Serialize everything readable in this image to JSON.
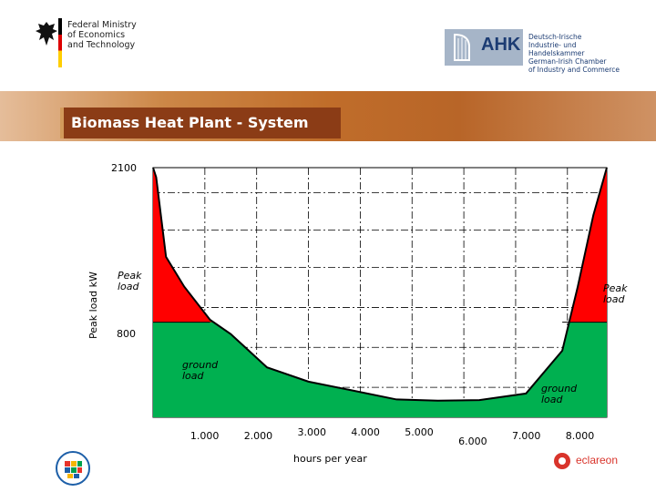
{
  "header": {
    "ministry_text": "Federal Ministry\nof Economics\nand Technology",
    "ahk_letters": "AHK",
    "ahk_text": "Deutsch-Irische\nIndustrie- und Handelskammer\nGerman-Irish Chamber\nof Industry and Commerce"
  },
  "slide": {
    "title": "Biomass Heat Plant - System"
  },
  "footer": {
    "right_logo_text": "eclareon"
  },
  "colors": {
    "peak": "#ff0000",
    "ground": "#00b050",
    "banner": "#c06d2a",
    "title_box": "#8b3c16"
  },
  "chart_data": {
    "type": "area",
    "title": "",
    "xlabel": "hours per year",
    "ylabel": "Peak load kW",
    "x_ticks": [
      "1.000",
      "2.000",
      "3.000",
      "4.000",
      "5.000",
      "6.000",
      "7.000",
      "8.000"
    ],
    "y_ticks": [
      "2100",
      "800"
    ],
    "xlim": [
      0,
      8760
    ],
    "ylim": [
      0,
      2100
    ],
    "grid": true,
    "base_load_kW": 800,
    "series": [
      {
        "values": [
          {
            "x": 0,
            "y": 2100
          },
          {
            "x": 60,
            "y": 2020
          },
          {
            "x": 250,
            "y": 1350
          },
          {
            "x": 600,
            "y": 1100
          },
          {
            "x": 1100,
            "y": 820
          },
          {
            "x": 1500,
            "y": 700
          },
          {
            "x": 2200,
            "y": 420
          },
          {
            "x": 3000,
            "y": 300
          },
          {
            "x": 3800,
            "y": 230
          },
          {
            "x": 4700,
            "y": 150
          },
          {
            "x": 5500,
            "y": 140
          },
          {
            "x": 6300,
            "y": 145
          },
          {
            "x": 7200,
            "y": 200
          },
          {
            "x": 7900,
            "y": 560
          },
          {
            "x": 8200,
            "y": 1100
          },
          {
            "x": 8500,
            "y": 1700
          },
          {
            "x": 8760,
            "y": 2100
          }
        ]
      }
    ],
    "annotations": {
      "peak_left": "Peak\nload",
      "peak_right": "Peak\nload",
      "ground_left": "ground\nload",
      "ground_right": "ground\nload"
    }
  }
}
